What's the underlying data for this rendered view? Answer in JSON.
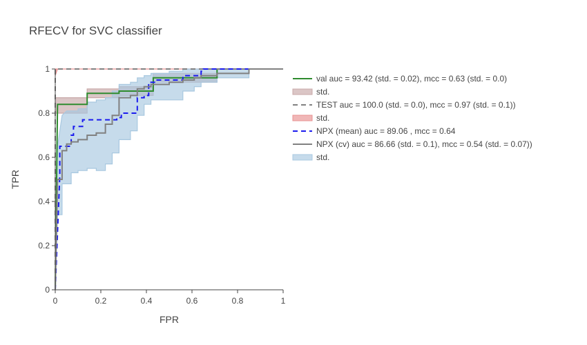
{
  "chart_data": {
    "type": "line",
    "title": "RFECV for SVC classifier",
    "xlabel": "FPR",
    "ylabel": "TPR",
    "xlim": [
      0,
      1
    ],
    "ylim": [
      0,
      1
    ],
    "xticks": [
      "0",
      "0.2",
      "0.4",
      "0.6",
      "0.8",
      "1"
    ],
    "yticks": [
      "0",
      "0.2",
      "0.4",
      "0.6",
      "0.8",
      "1"
    ],
    "grid": false,
    "legend_position": "right",
    "series": [
      {
        "name": "val auc = 93.42 (std. = 0.02), mcc = 0.63 (std. = 0.0)",
        "kind": "line",
        "color": "#2e8b2e",
        "dash": "solid",
        "x": [
          0,
          0.01,
          0.01,
          0.14,
          0.14,
          0.28,
          0.28,
          0.43,
          0.43,
          0.71,
          0.71,
          1.0
        ],
        "y": [
          0,
          0.84,
          0.84,
          0.84,
          0.89,
          0.89,
          0.9,
          0.9,
          0.96,
          0.96,
          1.0,
          1.0
        ]
      },
      {
        "name": "std.",
        "kind": "band",
        "color": "#c8a8a8",
        "upper_x": [
          0,
          0.01,
          0.14,
          0.14,
          0.28,
          0.28,
          0.43,
          0.43,
          0.71,
          0.71,
          1.0
        ],
        "upper_y": [
          0.87,
          0.87,
          0.87,
          0.91,
          0.91,
          0.92,
          0.92,
          0.98,
          0.98,
          1.0,
          1.0
        ],
        "lower_x": [
          0,
          0.01,
          0.14,
          0.14,
          0.28,
          0.28,
          0.43,
          0.43,
          0.71,
          0.71,
          1.0
        ],
        "lower_y": [
          0.8,
          0.8,
          0.8,
          0.87,
          0.87,
          0.88,
          0.88,
          0.94,
          0.94,
          1.0,
          1.0
        ]
      },
      {
        "name": "TEST auc = 100.0 (std. = 0.0), mcc = 0.97 (std. = 0.1))",
        "kind": "line",
        "color": "#808080",
        "dash": "dash",
        "x": [
          0,
          0,
          0.01,
          1.0
        ],
        "y": [
          0,
          1.0,
          1.0,
          1.0
        ]
      },
      {
        "name": "std.",
        "kind": "band",
        "color": "#e89090",
        "upper_x": [
          0,
          0.01,
          1.0
        ],
        "upper_y": [
          1.0,
          1.0,
          1.0
        ],
        "lower_x": [
          0,
          0.01,
          1.0
        ],
        "lower_y": [
          0.97,
          1.0,
          1.0
        ]
      },
      {
        "name": "NPX (mean) auc = 89.06 , mcc = 0.64",
        "kind": "line",
        "color": "#1a1aee",
        "dash": "dash",
        "x": [
          0,
          0.02,
          0.02,
          0.07,
          0.07,
          0.08,
          0.08,
          0.12,
          0.12,
          0.27,
          0.27,
          0.29,
          0.29,
          0.36,
          0.36,
          0.39,
          0.39,
          0.41,
          0.41,
          0.44,
          0.44,
          0.56,
          0.56,
          0.64,
          0.64,
          0.65,
          0.65,
          1.0
        ],
        "y": [
          0,
          0.52,
          0.65,
          0.65,
          0.7,
          0.7,
          0.74,
          0.74,
          0.77,
          0.77,
          0.78,
          0.78,
          0.8,
          0.8,
          0.87,
          0.87,
          0.88,
          0.88,
          0.94,
          0.94,
          0.95,
          0.95,
          0.97,
          0.97,
          0.99,
          0.99,
          1.0,
          1.0
        ]
      },
      {
        "name": "NPX (cv) auc = 86.66 (std. = 0.1), mcc = 0.54 (std. = 0.07))",
        "kind": "line",
        "color": "#808080",
        "dash": "solid",
        "x": [
          0,
          0.01,
          0.01,
          0.03,
          0.03,
          0.05,
          0.05,
          0.07,
          0.07,
          0.1,
          0.1,
          0.14,
          0.14,
          0.18,
          0.18,
          0.22,
          0.22,
          0.25,
          0.25,
          0.28,
          0.28,
          0.33,
          0.33,
          0.36,
          0.36,
          0.39,
          0.39,
          0.42,
          0.42,
          0.5,
          0.5,
          0.56,
          0.56,
          0.61,
          0.61,
          0.64,
          0.64,
          0.71,
          0.71,
          0.85,
          0.85,
          1.0
        ],
        "y": [
          0,
          0.5,
          0.5,
          0.5,
          0.63,
          0.63,
          0.66,
          0.66,
          0.67,
          0.67,
          0.68,
          0.68,
          0.7,
          0.7,
          0.71,
          0.71,
          0.75,
          0.75,
          0.79,
          0.79,
          0.87,
          0.87,
          0.88,
          0.88,
          0.91,
          0.91,
          0.92,
          0.92,
          0.93,
          0.93,
          0.94,
          0.94,
          0.95,
          0.95,
          0.96,
          0.96,
          0.97,
          0.97,
          0.98,
          0.98,
          1.0,
          1.0
        ]
      },
      {
        "name": "std.",
        "kind": "band",
        "color": "#a8c8e0",
        "upper_x": [
          0,
          0.01,
          0.01,
          0.03,
          0.03,
          0.05,
          0.05,
          0.07,
          0.07,
          0.1,
          0.1,
          0.14,
          0.14,
          0.18,
          0.18,
          0.22,
          0.22,
          0.25,
          0.25,
          0.28,
          0.28,
          0.33,
          0.33,
          0.36,
          0.36,
          0.39,
          0.39,
          0.42,
          0.42,
          0.5,
          0.5,
          0.56,
          0.56,
          0.64,
          0.64,
          0.71,
          0.71,
          1.0
        ],
        "upper_y": [
          0,
          0.65,
          0.65,
          0.79,
          0.79,
          0.81,
          0.81,
          0.81,
          0.81,
          0.81,
          0.82,
          0.82,
          0.85,
          0.85,
          0.86,
          0.86,
          0.87,
          0.87,
          0.9,
          0.9,
          0.93,
          0.93,
          0.94,
          0.94,
          0.96,
          0.96,
          0.97,
          0.97,
          0.98,
          0.98,
          0.99,
          0.99,
          1.0,
          1.0,
          1.0,
          1.0,
          1.0,
          1.0
        ],
        "lower_x": [
          0,
          0.01,
          0.01,
          0.03,
          0.03,
          0.07,
          0.07,
          0.1,
          0.1,
          0.14,
          0.14,
          0.18,
          0.18,
          0.22,
          0.22,
          0.25,
          0.25,
          0.28,
          0.28,
          0.33,
          0.33,
          0.36,
          0.36,
          0.39,
          0.39,
          0.42,
          0.42,
          0.56,
          0.56,
          0.61,
          0.61,
          0.64,
          0.64,
          0.71,
          0.71,
          0.85,
          0.85,
          1.0
        ],
        "lower_y": [
          0,
          0.34,
          0.34,
          0.34,
          0.48,
          0.48,
          0.53,
          0.53,
          0.54,
          0.54,
          0.55,
          0.55,
          0.54,
          0.54,
          0.57,
          0.57,
          0.62,
          0.62,
          0.68,
          0.68,
          0.72,
          0.72,
          0.79,
          0.79,
          0.84,
          0.84,
          0.86,
          0.86,
          0.9,
          0.9,
          0.92,
          0.92,
          0.94,
          0.94,
          0.96,
          0.96,
          1.0,
          1.0
        ]
      }
    ]
  }
}
